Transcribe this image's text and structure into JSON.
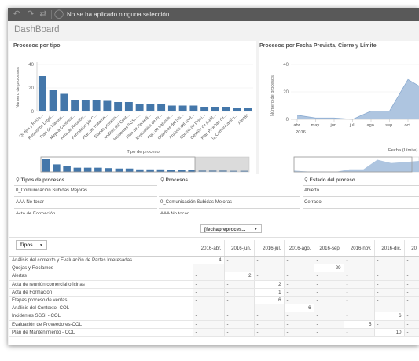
{
  "toolbar": {
    "selection_text": "No se ha aplicado ninguna selección",
    "icons": [
      "back-icon",
      "forward-icon",
      "clear-selections-icon"
    ]
  },
  "sheet": {
    "title": "DashBoard"
  },
  "chart_data": [
    {
      "type": "bar",
      "title": "Procesos por tipo",
      "xlabel": "Tipo de proceso",
      "ylabel": "Número de procesos",
      "ylim": [
        0,
        40
      ],
      "yticks": [
        "0",
        "20",
        "40"
      ],
      "categories": [
        "Quejas y Recla...",
        "Requisitos Legal...",
        "Plan de Manten...",
        "Mejora Continua...",
        "Acta de Reunión...",
        "Formación y/o C...",
        "Plan de Tratame...",
        "Etapas proceso...",
        "Análisis del Cont...",
        "Incidentes SGSI -...",
        "Plan de Remedi...",
        "Evaluación de Pr...",
        "Plan de tratamie...",
        "Objetivos del Sis...",
        "Análisis del cont...",
        "Control de Docu...",
        "Gestión de Audit...",
        "Plan Pruebas de...",
        "0_Comunicación...",
        "Alertas"
      ],
      "values": [
        30,
        18,
        15,
        10,
        10,
        10,
        9,
        8,
        8,
        6,
        6,
        6,
        5,
        5,
        5,
        4,
        4,
        4,
        3,
        3
      ],
      "color": "#4477aa"
    },
    {
      "type": "area",
      "title": "Procesos por Fecha Prevista, Cierre y Límite",
      "ylabel": "Número de procesos",
      "ylim": [
        0,
        40
      ],
      "yticks": [
        "0",
        "20",
        "40"
      ],
      "categories": [
        "abr.",
        "may.",
        "jun.",
        "jul.",
        "ago.",
        "sep.",
        "oct.",
        "nov."
      ],
      "year_label": "2016",
      "values": [
        3,
        1,
        1,
        0,
        6,
        6,
        29,
        21
      ],
      "dropdown_label": "Fecha (Límite)",
      "color": "#aec5e0"
    }
  ],
  "listboxes": [
    {
      "title": "Tipos de procesos",
      "items": [
        "0_Comunicación Subidas Mejoras",
        "AAA No tocar",
        "Acta de Formación"
      ]
    },
    {
      "title": "Procesos",
      "items": [
        "0_Comunicación Subidas Mejoras",
        "AAA No tocar"
      ]
    },
    {
      "title": "Estado del proceso",
      "items": [
        "Abierto",
        "Cerrado"
      ]
    }
  ],
  "pivot": {
    "row_dimension_label": "Tipos",
    "column_dimension_label": "[fechapreproces...",
    "columns": [
      "2016-abr.",
      "2016-jun.",
      "2016-jul.",
      "2016-ago.",
      "2016-sep.",
      "2016-nov.",
      "2016-dic.",
      "20"
    ],
    "rows": [
      {
        "label": "Análisis del contexto y Evaluación de Partes Interesadas",
        "cells": [
          "4",
          "-",
          "-",
          "-",
          "-",
          "-",
          "-",
          "-"
        ]
      },
      {
        "label": "Quejas y Reclamos",
        "cells": [
          "-",
          "-",
          "-",
          "-",
          "29",
          "-",
          "-",
          "-"
        ]
      },
      {
        "label": "Alertas",
        "cells": [
          "-",
          "2",
          "-",
          "-",
          "-",
          "-",
          "-",
          "-"
        ]
      },
      {
        "label": "Acta de reunión comercial oficinas",
        "cells": [
          "-",
          "-",
          "2",
          "-",
          "-",
          "-",
          "-",
          "-"
        ]
      },
      {
        "label": "Acta de Formación",
        "cells": [
          "-",
          "-",
          "1",
          "-",
          "-",
          "-",
          "-",
          "-"
        ]
      },
      {
        "label": "Etapas proceso de ventas",
        "cells": [
          "-",
          "-",
          "6",
          "-",
          "-",
          "-",
          "-",
          "-"
        ]
      },
      {
        "label": "Análisis del Contexto -COL",
        "cells": [
          "-",
          "-",
          "-",
          "6",
          "-",
          "-",
          "-",
          "-"
        ]
      },
      {
        "label": "Incidentes SGSI - COL",
        "cells": [
          "-",
          "-",
          "-",
          "-",
          "-",
          "-",
          "6",
          "-"
        ]
      },
      {
        "label": "Evaluación de Proveedores-COL",
        "cells": [
          "-",
          "-",
          "-",
          "-",
          "-",
          "5",
          "-",
          "-"
        ]
      },
      {
        "label": "Plan de Mantenimiento - COL",
        "cells": [
          "-",
          "-",
          "-",
          "-",
          "-",
          "-",
          "10",
          "-"
        ]
      }
    ]
  }
}
